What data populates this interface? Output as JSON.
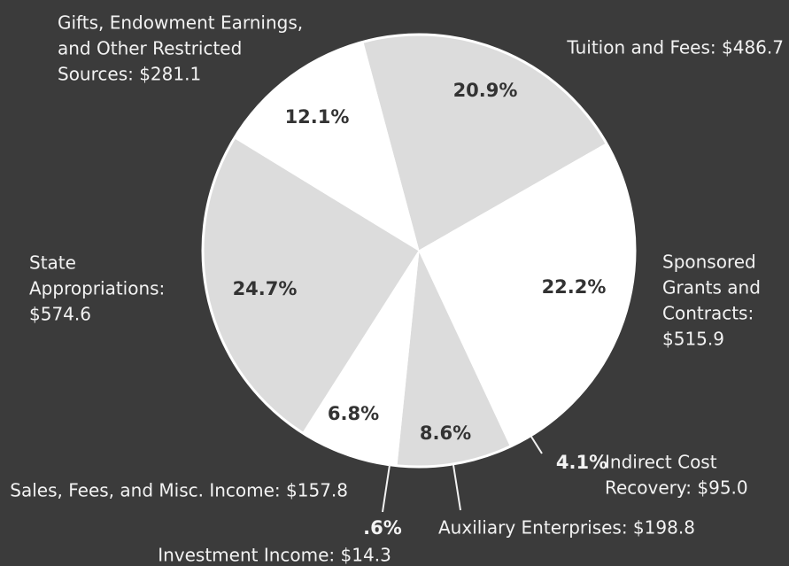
{
  "chart_data": {
    "type": "pie",
    "categories": [
      [
        "Tuition and Fees: $486.7"
      ],
      [
        "Sponsored",
        "Grants and",
        "Contracts:",
        "$515.9"
      ],
      [
        "Indirect Cost",
        "Recovery: $95.0"
      ],
      [
        "Auxiliary Enterprises: $198.8"
      ],
      [
        "Investment Income: $14.3"
      ],
      [
        "Sales, Fees, and Misc. Income: $157.8"
      ],
      [
        "State",
        "Appropriations:",
        "$574.6"
      ],
      [
        "Gifts, Endowment Earnings,",
        "and Other Restricted",
        "Sources: $281.1"
      ]
    ],
    "values": [
      20.9,
      22.2,
      4.1,
      8.6,
      0.6,
      6.8,
      24.7,
      12.1
    ],
    "value_labels": [
      "20.9%",
      "22.2%",
      "4.1%",
      "8.6%",
      ".6%",
      "6.8%",
      "24.7%",
      "12.1%"
    ],
    "colors": [
      "#dcdcdc",
      "#ffffff",
      "#ffffff",
      "#dcdcdc",
      "#ffffff",
      "#ffffff",
      "#dcdcdc",
      "#ffffff"
    ]
  }
}
